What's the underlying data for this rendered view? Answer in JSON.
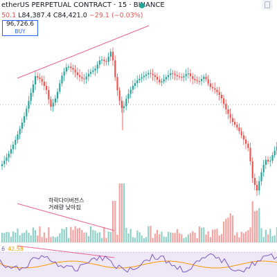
{
  "header": {
    "symbol_title": "etherUS PERPETUAL CONTRACT · 15 · BINANCE",
    "ohlc_prefix": "50.1",
    "ohlc_low": "L84,387.4",
    "ohlc_close": "C84,421.0",
    "ohlc_change": "−29.1 (−0.03%)"
  },
  "buy_box": {
    "price": "96,726.6",
    "label": "BUY"
  },
  "annotation": {
    "line1": "하락다이버전스",
    "line2": "거래량 낮아짐"
  },
  "rsi": {
    "value_a": "6",
    "value_b": "42.58"
  },
  "colors": {
    "up": "#26a69a",
    "down": "#ef5350",
    "trend": "#f06292",
    "rsi_line": "#7e57c2",
    "rsi_ma": "#ff9800",
    "rsi_band": "#ede7f6",
    "vol_up": "#8fd1c9",
    "vol_down": "#f5a3a0",
    "dotted": "#9aa0a6"
  },
  "icons": {
    "live": "live-status-dot",
    "top_right": "layout-icon"
  }
}
